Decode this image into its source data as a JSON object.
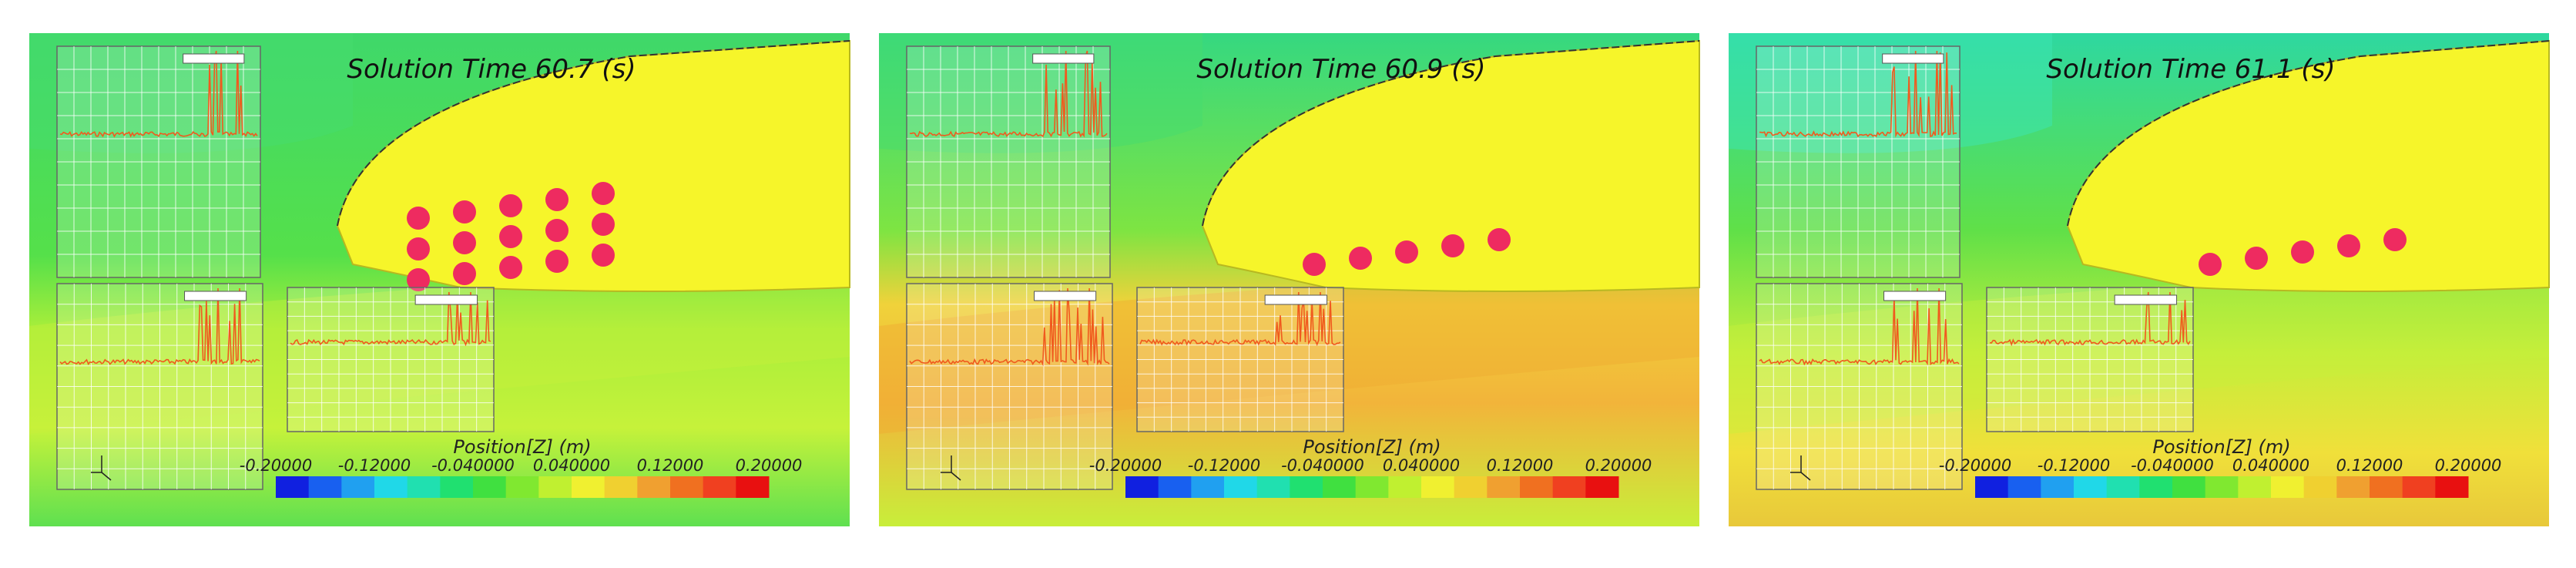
{
  "panels": [
    {
      "title": "Solution Time 60.7 (s)",
      "colorbar": {
        "title": "Position[Z] (m)",
        "ticks": [
          "-0.20000",
          "-0.12000",
          "-0.040000",
          "0.040000",
          "0.12000",
          "0.20000"
        ]
      }
    },
    {
      "title": "Solution Time 60.9 (s)",
      "colorbar": {
        "title": "Position[Z] (m)",
        "ticks": [
          "-0.20000",
          "-0.12000",
          "-0.040000",
          "0.040000",
          "0.12000",
          "0.20000"
        ]
      }
    },
    {
      "title": "Solution Time 61.1 (s)",
      "colorbar": {
        "title": "Position[Z] (m)",
        "ticks": [
          "-0.20000",
          "-0.12000",
          "-0.040000",
          "0.040000",
          "0.12000",
          "0.20000"
        ]
      }
    }
  ]
}
